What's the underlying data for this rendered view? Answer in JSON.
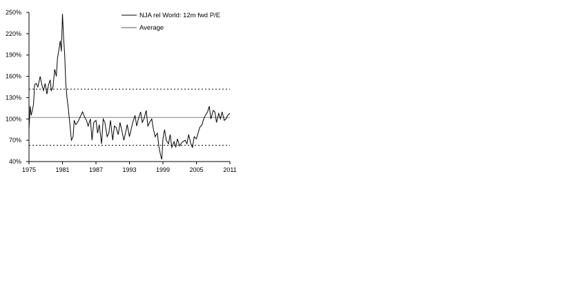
{
  "chart_data": {
    "type": "line",
    "title": "",
    "xlabel": "",
    "ylabel": "",
    "xlim": [
      1975,
      2011
    ],
    "ylim": [
      40,
      250
    ],
    "x_ticks": [
      1975,
      1981,
      1987,
      1993,
      1999,
      2005,
      2011
    ],
    "x_tick_labels": [
      "1975",
      "1981",
      "1987",
      "1993",
      "1999",
      "2005",
      "2011"
    ],
    "y_ticks": [
      40,
      70,
      100,
      130,
      160,
      190,
      220,
      250
    ],
    "y_tick_labels": [
      "40%",
      "70%",
      "100%",
      "130%",
      "160%",
      "190%",
      "220%",
      "250%"
    ],
    "legend_position": "top-center",
    "series": [
      {
        "name": "NJA rel World: 12m fwd P/E",
        "color": "#000000",
        "x": [
          1975.0,
          1975.2,
          1975.4,
          1975.6,
          1975.8,
          1976.0,
          1976.3,
          1976.6,
          1977.0,
          1977.3,
          1977.6,
          1977.9,
          1978.2,
          1978.5,
          1978.8,
          1979.0,
          1979.3,
          1979.6,
          1979.9,
          1980.1,
          1980.4,
          1980.6,
          1980.8,
          1981.0,
          1981.2,
          1981.4,
          1981.6,
          1981.8,
          1982.0,
          1982.3,
          1982.6,
          1982.9,
          1983.1,
          1983.4,
          1983.7,
          1984.0,
          1984.3,
          1984.6,
          1985.0,
          1985.3,
          1985.6,
          1986.0,
          1986.3,
          1986.6,
          1987.0,
          1987.3,
          1987.6,
          1988.0,
          1988.3,
          1988.6,
          1989.0,
          1989.3,
          1989.6,
          1990.0,
          1990.3,
          1990.6,
          1991.0,
          1991.3,
          1991.6,
          1992.0,
          1992.3,
          1992.6,
          1993.0,
          1993.3,
          1993.6,
          1994.0,
          1994.3,
          1994.6,
          1995.0,
          1995.3,
          1995.6,
          1996.0,
          1996.3,
          1996.6,
          1997.0,
          1997.3,
          1997.6,
          1998.0,
          1998.3,
          1998.6,
          1998.8,
          1999.0,
          1999.3,
          1999.6,
          2000.0,
          2000.3,
          2000.6,
          2001.0,
          2001.3,
          2001.6,
          2002.0,
          2002.3,
          2002.6,
          2003.0,
          2003.3,
          2003.6,
          2004.0,
          2004.3,
          2004.6,
          2005.0,
          2005.3,
          2005.6,
          2006.0,
          2006.3,
          2006.6,
          2007.0,
          2007.3,
          2007.6,
          2008.0,
          2008.3,
          2008.6,
          2009.0,
          2009.3,
          2009.6,
          2010.0,
          2010.3,
          2010.6,
          2011.0
        ],
        "values": [
          85,
          118,
          105,
          112,
          120,
          148,
          150,
          145,
          160,
          148,
          140,
          150,
          135,
          148,
          155,
          140,
          145,
          170,
          160,
          185,
          200,
          210,
          195,
          248,
          215,
          190,
          150,
          130,
          118,
          95,
          70,
          75,
          98,
          92,
          95,
          100,
          105,
          110,
          102,
          98,
          90,
          100,
          70,
          95,
          98,
          80,
          92,
          65,
          100,
          95,
          75,
          80,
          98,
          70,
          90,
          88,
          78,
          95,
          85,
          70,
          80,
          92,
          75,
          85,
          95,
          105,
          90,
          100,
          110,
          95,
          100,
          112,
          90,
          95,
          100,
          85,
          75,
          80,
          60,
          48,
          43,
          72,
          85,
          70,
          65,
          78,
          60,
          68,
          60,
          72,
          62,
          66,
          68,
          70,
          65,
          78,
          65,
          60,
          75,
          72,
          80,
          88,
          92,
          100,
          105,
          110,
          118,
          100,
          112,
          110,
          95,
          108,
          100,
          110,
          98,
          100,
          105,
          108
        ]
      },
      {
        "name": "Average",
        "color": "#aaaaaa",
        "values": [
          102
        ]
      }
    ],
    "bands": [
      {
        "value": 142,
        "style": "dotted"
      },
      {
        "value": 63,
        "style": "dotted"
      }
    ]
  }
}
